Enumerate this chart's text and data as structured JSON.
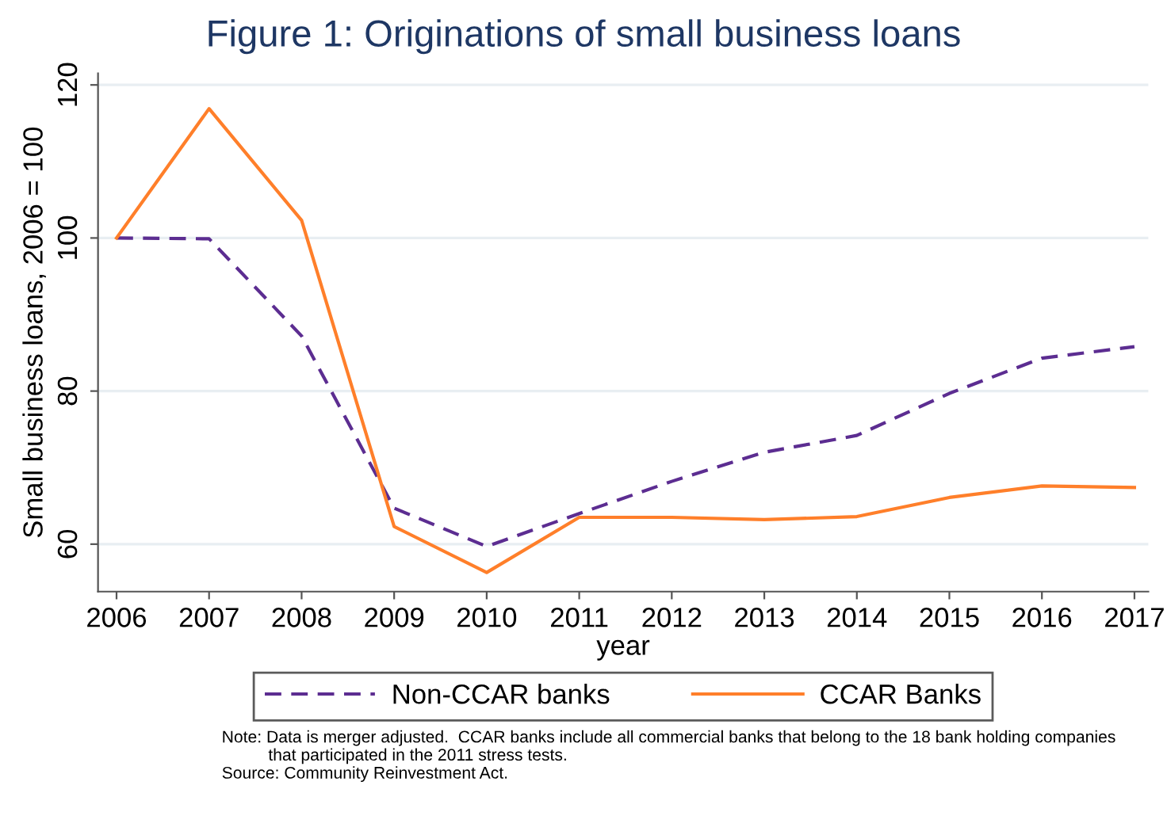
{
  "chart_data": {
    "type": "line",
    "title": "Figure 1: Originations of small business loans",
    "xlabel": "year",
    "ylabel": "Small business loans, 2006 = 100",
    "x": [
      2006,
      2007,
      2008,
      2009,
      2010,
      2011,
      2012,
      2013,
      2014,
      2015,
      2016,
      2017
    ],
    "series": [
      {
        "name": "Non-CCAR banks",
        "color": "#5c2d91",
        "line_style": "dashed",
        "values": [
          100,
          99.9,
          87.2,
          64.7,
          59.7,
          64.0,
          68.2,
          72.0,
          74.2,
          79.7,
          84.3,
          85.8
        ]
      },
      {
        "name": "CCAR Banks",
        "color": "#ff7f2a",
        "line_style": "solid",
        "values": [
          100,
          116.9,
          102.3,
          62.3,
          56.3,
          63.5,
          63.5,
          63.2,
          63.6,
          66.1,
          67.6,
          67.4
        ]
      }
    ],
    "xlim": [
      2005.8,
      2017.15
    ],
    "ylim": [
      53.8,
      121.5
    ],
    "xticks": [
      2006,
      2007,
      2008,
      2009,
      2010,
      2011,
      2012,
      2013,
      2014,
      2015,
      2016,
      2017
    ],
    "yticks": [
      60,
      80,
      100,
      120
    ],
    "grid": "y",
    "legend": "bottom",
    "annotations": [
      "Note: Data is merger adjusted.  CCAR banks include all commercial banks that belong to the 18 bank holding companies\n          that participated in the 2011 stress tests.\nSource: Community Reinvestment Act."
    ]
  }
}
